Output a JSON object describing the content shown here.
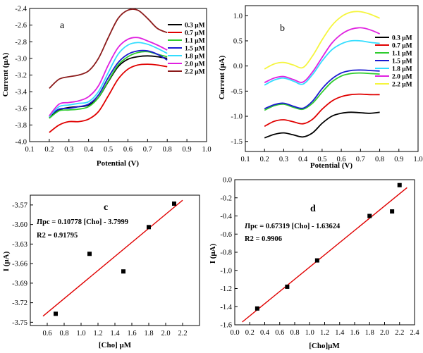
{
  "chart_data": [
    {
      "panel": "a",
      "type": "line",
      "panel_label": "a",
      "xlabel": "Potential (V)",
      "ylabel": "Current (μA)",
      "xlim": [
        0.1,
        1.0
      ],
      "ylim": [
        -4.0,
        -2.4
      ],
      "xticks": [
        "0.1",
        "0.2",
        "0.3",
        "0.4",
        "0.5",
        "0.6",
        "0.7",
        "0.8",
        "0.9",
        "1.0"
      ],
      "yticks": [
        "-2.4",
        "-2.6",
        "-2.8",
        "-3.0",
        "-3.2",
        "-3.4",
        "-3.6",
        "-3.8",
        "-4.0"
      ],
      "legend_position": "right",
      "series": [
        {
          "name": "0.3 μM",
          "color": "#000000",
          "x": [
            0.2,
            0.25,
            0.3,
            0.35,
            0.4,
            0.45,
            0.5,
            0.55,
            0.6,
            0.65,
            0.7,
            0.75,
            0.8
          ],
          "y": [
            -3.71,
            -3.62,
            -3.59,
            -3.58,
            -3.56,
            -3.47,
            -3.28,
            -3.1,
            -3.01,
            -2.98,
            -2.97,
            -2.98,
            -3.0
          ]
        },
        {
          "name": "0.7 μM",
          "color": "#e00000",
          "x": [
            0.2,
            0.25,
            0.3,
            0.35,
            0.4,
            0.45,
            0.5,
            0.55,
            0.6,
            0.65,
            0.7,
            0.75,
            0.8
          ],
          "y": [
            -3.89,
            -3.8,
            -3.76,
            -3.76,
            -3.73,
            -3.64,
            -3.45,
            -3.25,
            -3.13,
            -3.08,
            -3.07,
            -3.08,
            -3.1
          ]
        },
        {
          "name": "1.1 μM",
          "color": "#2ecc2e",
          "x": [
            0.2,
            0.25,
            0.3,
            0.35,
            0.4,
            0.45,
            0.5,
            0.55,
            0.6,
            0.65,
            0.7,
            0.75,
            0.8
          ],
          "y": [
            -3.72,
            -3.63,
            -3.62,
            -3.61,
            -3.58,
            -3.47,
            -3.27,
            -3.08,
            -2.98,
            -2.93,
            -2.92,
            -2.95,
            -2.98
          ]
        },
        {
          "name": "1.5 μM",
          "color": "#1a1ad0",
          "x": [
            0.2,
            0.25,
            0.3,
            0.35,
            0.4,
            0.45,
            0.5,
            0.55,
            0.6,
            0.65,
            0.7,
            0.75,
            0.8
          ],
          "y": [
            -3.69,
            -3.61,
            -3.6,
            -3.58,
            -3.55,
            -3.44,
            -3.23,
            -3.05,
            -2.95,
            -2.91,
            -2.91,
            -2.95,
            -3.02
          ]
        },
        {
          "name": "1.8 μM",
          "color": "#33ddff",
          "x": [
            0.2,
            0.25,
            0.3,
            0.35,
            0.4,
            0.45,
            0.5,
            0.55,
            0.6,
            0.65,
            0.7,
            0.75,
            0.8
          ],
          "y": [
            -3.7,
            -3.58,
            -3.56,
            -3.54,
            -3.52,
            -3.4,
            -3.17,
            -2.95,
            -2.84,
            -2.81,
            -2.83,
            -2.88,
            -2.94
          ]
        },
        {
          "name": "2.0 μM",
          "color": "#e020e0",
          "x": [
            0.2,
            0.25,
            0.3,
            0.35,
            0.4,
            0.45,
            0.5,
            0.55,
            0.6,
            0.65,
            0.7,
            0.75,
            0.8
          ],
          "y": [
            -3.69,
            -3.55,
            -3.53,
            -3.51,
            -3.46,
            -3.33,
            -3.08,
            -2.87,
            -2.77,
            -2.75,
            -2.79,
            -2.84,
            -2.9
          ]
        },
        {
          "name": "2.2 μM",
          "color": "#8b1a1a",
          "x": [
            0.2,
            0.25,
            0.3,
            0.35,
            0.4,
            0.45,
            0.5,
            0.55,
            0.6,
            0.65,
            0.7,
            0.75,
            0.8
          ],
          "y": [
            -3.36,
            -3.25,
            -3.22,
            -3.2,
            -3.15,
            -3.0,
            -2.75,
            -2.52,
            -2.42,
            -2.42,
            -2.52,
            -2.64,
            -2.69
          ]
        }
      ]
    },
    {
      "panel": "b",
      "type": "line",
      "panel_label": "b",
      "xlabel": "Potential (V)",
      "ylabel": "Current (μA)",
      "xlim": [
        0.1,
        1.0
      ],
      "ylim": [
        -1.7,
        1.2
      ],
      "xticks": [
        "0.1",
        "0.2",
        "0.3",
        "0.4",
        "0.5",
        "0.6",
        "0.7",
        "0.8",
        "0.9",
        "1.0"
      ],
      "yticks": [
        "1.0",
        "0.5",
        "0.0",
        "-0.5",
        "-1.0",
        "-1.5"
      ],
      "legend_position": "right",
      "series": [
        {
          "name": "0.3 μM",
          "color": "#000000",
          "x": [
            0.2,
            0.25,
            0.3,
            0.35,
            0.4,
            0.45,
            0.5,
            0.55,
            0.6,
            0.65,
            0.7,
            0.75,
            0.8
          ],
          "y": [
            -1.43,
            -1.36,
            -1.33,
            -1.37,
            -1.41,
            -1.33,
            -1.14,
            -1.0,
            -0.94,
            -0.92,
            -0.93,
            -0.94,
            -0.92
          ]
        },
        {
          "name": "0.7 μM",
          "color": "#e00000",
          "x": [
            0.2,
            0.25,
            0.3,
            0.35,
            0.4,
            0.45,
            0.5,
            0.55,
            0.6,
            0.65,
            0.7,
            0.75,
            0.8
          ],
          "y": [
            -1.2,
            -1.1,
            -1.07,
            -1.11,
            -1.15,
            -1.06,
            -0.86,
            -0.7,
            -0.61,
            -0.57,
            -0.56,
            -0.57,
            -0.57
          ]
        },
        {
          "name": "1.1 μM",
          "color": "#2ecc2e",
          "x": [
            0.2,
            0.25,
            0.3,
            0.35,
            0.4,
            0.45,
            0.5,
            0.55,
            0.6,
            0.65,
            0.7,
            0.75,
            0.8
          ],
          "y": [
            -0.88,
            -0.79,
            -0.76,
            -0.82,
            -0.86,
            -0.74,
            -0.52,
            -0.32,
            -0.2,
            -0.15,
            -0.14,
            -0.15,
            -0.16
          ]
        },
        {
          "name": "1.5 μM",
          "color": "#1a1ad0",
          "x": [
            0.2,
            0.25,
            0.3,
            0.35,
            0.4,
            0.45,
            0.5,
            0.55,
            0.6,
            0.65,
            0.7,
            0.75,
            0.8
          ],
          "y": [
            -0.85,
            -0.77,
            -0.74,
            -0.8,
            -0.84,
            -0.7,
            -0.45,
            -0.26,
            -0.14,
            -0.09,
            -0.08,
            -0.09,
            -0.1
          ]
        },
        {
          "name": "1.8 μM",
          "color": "#33ddff",
          "x": [
            0.2,
            0.25,
            0.3,
            0.35,
            0.4,
            0.45,
            0.5,
            0.55,
            0.6,
            0.65,
            0.7,
            0.75,
            0.8
          ],
          "y": [
            -0.38,
            -0.28,
            -0.24,
            -0.3,
            -0.36,
            -0.17,
            0.1,
            0.32,
            0.44,
            0.5,
            0.5,
            0.47,
            0.45
          ]
        },
        {
          "name": "2.0 μM",
          "color": "#e020e0",
          "x": [
            0.2,
            0.25,
            0.3,
            0.35,
            0.4,
            0.45,
            0.5,
            0.55,
            0.6,
            0.65,
            0.7,
            0.75,
            0.8
          ],
          "y": [
            -0.33,
            -0.24,
            -0.21,
            -0.27,
            -0.32,
            -0.12,
            0.17,
            0.45,
            0.63,
            0.73,
            0.76,
            0.72,
            0.64
          ]
        },
        {
          "name": "2.2 μM",
          "color": "#f5f53d",
          "x": [
            0.2,
            0.25,
            0.3,
            0.35,
            0.4,
            0.45,
            0.5,
            0.55,
            0.6,
            0.65,
            0.7,
            0.75,
            0.8
          ],
          "y": [
            -0.06,
            0.04,
            0.07,
            0.02,
            -0.03,
            0.2,
            0.52,
            0.8,
            0.98,
            1.07,
            1.08,
            1.03,
            0.95
          ]
        }
      ]
    },
    {
      "panel": "c",
      "type": "scatter",
      "panel_label": "c",
      "xlabel": "[Cho] μM",
      "ylabel": "I (μA)",
      "xlim": [
        0.4,
        2.4
      ],
      "ylim": [
        -3.755,
        -3.555
      ],
      "xticks": [
        "0.6",
        "0.8",
        "1.0",
        "1.2",
        "1.4",
        "1.6",
        "1.8",
        "2.0",
        "2.2"
      ],
      "yticks": [
        "-3.57",
        "-3.60",
        "-3.63",
        "-3.66",
        "-3.69",
        "-3.72",
        "-3.75"
      ],
      "points": {
        "x": [
          0.7,
          1.1,
          1.5,
          1.8,
          2.1
        ],
        "y": [
          -3.737,
          -3.645,
          -3.672,
          -3.604,
          -3.568
        ]
      },
      "fit": {
        "slope": 0.10778,
        "intercept": -3.7999,
        "x_range": [
          0.55,
          2.2
        ]
      },
      "equation_line1": "Ipc = 0.10778 [Cho] - 3.7999",
      "equation_line2": "R2 = 0.91795",
      "line_color": "#e00000"
    },
    {
      "panel": "d",
      "type": "scatter",
      "panel_label": "d",
      "xlabel": "[Cho]μM",
      "ylabel": "I (μA)",
      "xlim": [
        0.0,
        2.4
      ],
      "ylim": [
        -1.6,
        0.0
      ],
      "xticks": [
        "0.0",
        "0.2",
        "0.4",
        "0.6",
        "0.8",
        "1.0",
        "1.2",
        "1.4",
        "1.6",
        "1.8",
        "2.0",
        "2.2",
        "2.4"
      ],
      "yticks": [
        "0.0",
        "-0.2",
        "-0.4",
        "-0.6",
        "-0.8",
        "-1.0",
        "-1.2",
        "-1.4",
        "-1.6"
      ],
      "points": {
        "x": [
          0.3,
          0.7,
          1.1,
          1.8,
          2.1,
          2.2
        ],
        "y": [
          -1.42,
          -1.18,
          -0.89,
          -0.4,
          -0.35,
          -0.06
        ]
      },
      "fit": {
        "slope": 0.67319,
        "intercept": -1.63624,
        "x_range": [
          0.1,
          2.3
        ]
      },
      "equation_line1": "Ipc = 0.67319 [Cho] - 1.63624",
      "equation_line2": "R2 = 0.9906",
      "line_color": "#e00000"
    }
  ]
}
